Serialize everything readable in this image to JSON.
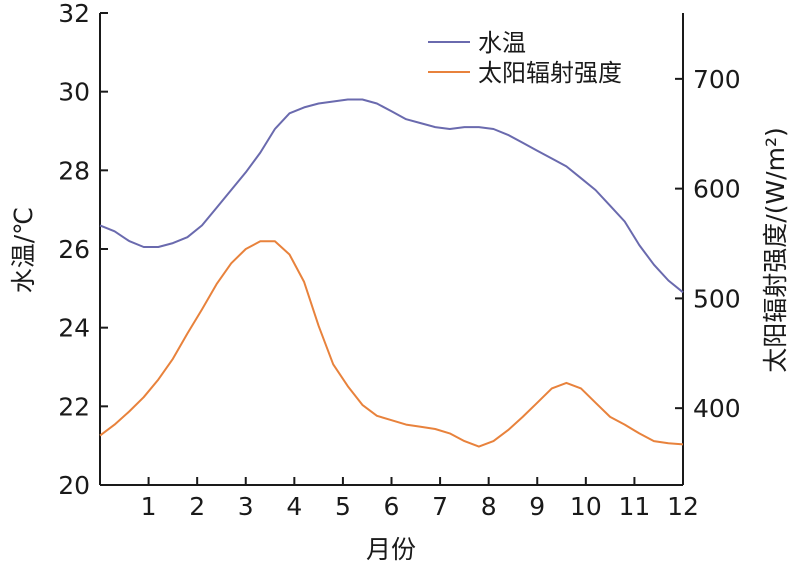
{
  "chart_data": {
    "type": "line",
    "x_axis": {
      "label": "月份",
      "range": [
        0,
        12
      ],
      "ticks": [
        1,
        2,
        3,
        4,
        5,
        6,
        7,
        8,
        9,
        10,
        11,
        12
      ]
    },
    "y_left": {
      "label": "水温/℃",
      "range": [
        20,
        32
      ],
      "ticks": [
        20,
        22,
        24,
        26,
        28,
        30,
        32
      ]
    },
    "y_right": {
      "label": "太阳辐射强度/(W/m²)",
      "range": [
        330,
        760
      ],
      "ticks": [
        400,
        500,
        600,
        700
      ]
    },
    "grid": false,
    "legend_position": "top-right",
    "series": [
      {
        "name": "水温",
        "axis": "left",
        "color": "#6a6aae",
        "x": [
          0,
          0.3,
          0.6,
          0.9,
          1.2,
          1.5,
          1.8,
          2.1,
          2.4,
          2.7,
          3.0,
          3.3,
          3.6,
          3.9,
          4.2,
          4.5,
          4.8,
          5.1,
          5.4,
          5.7,
          6.0,
          6.3,
          6.6,
          6.9,
          7.2,
          7.5,
          7.8,
          8.1,
          8.4,
          8.7,
          9.0,
          9.3,
          9.6,
          9.9,
          10.2,
          10.5,
          10.8,
          11.1,
          11.4,
          11.7,
          12.0
        ],
        "values": [
          26.6,
          26.45,
          26.2,
          26.05,
          26.05,
          26.15,
          26.3,
          26.6,
          27.05,
          27.5,
          27.95,
          28.45,
          29.05,
          29.45,
          29.6,
          29.7,
          29.75,
          29.8,
          29.8,
          29.7,
          29.5,
          29.3,
          29.2,
          29.1,
          29.05,
          29.1,
          29.1,
          29.05,
          28.9,
          28.7,
          28.5,
          28.3,
          28.1,
          27.8,
          27.5,
          27.1,
          26.7,
          26.1,
          25.6,
          25.2,
          24.9
        ]
      },
      {
        "name": "太阳辐射强度",
        "axis": "right",
        "color": "#e8823c",
        "x": [
          0,
          0.3,
          0.6,
          0.9,
          1.2,
          1.5,
          1.8,
          2.1,
          2.4,
          2.7,
          3.0,
          3.3,
          3.6,
          3.9,
          4.2,
          4.5,
          4.8,
          5.1,
          5.4,
          5.7,
          6.0,
          6.3,
          6.6,
          6.9,
          7.2,
          7.5,
          7.8,
          8.1,
          8.4,
          8.7,
          9.0,
          9.3,
          9.6,
          9.9,
          10.2,
          10.5,
          10.8,
          11.1,
          11.4,
          11.7,
          12.0
        ],
        "values": [
          375,
          385,
          397,
          410,
          426,
          445,
          468,
          490,
          513,
          532,
          545,
          552,
          552,
          540,
          515,
          475,
          440,
          420,
          403,
          393,
          389,
          385,
          383,
          381,
          377,
          370,
          365,
          370,
          380,
          392,
          405,
          418,
          423,
          418,
          405,
          392,
          385,
          377,
          370,
          368,
          367
        ]
      }
    ]
  }
}
